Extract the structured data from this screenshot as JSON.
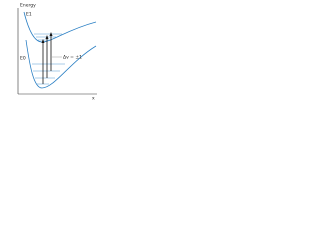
{
  "axes": {
    "y_label": "Energy",
    "x_label": "x"
  },
  "curves": {
    "upper_label": "E1",
    "lower_label": "E0"
  },
  "transition_label": "Δv = ±1"
}
